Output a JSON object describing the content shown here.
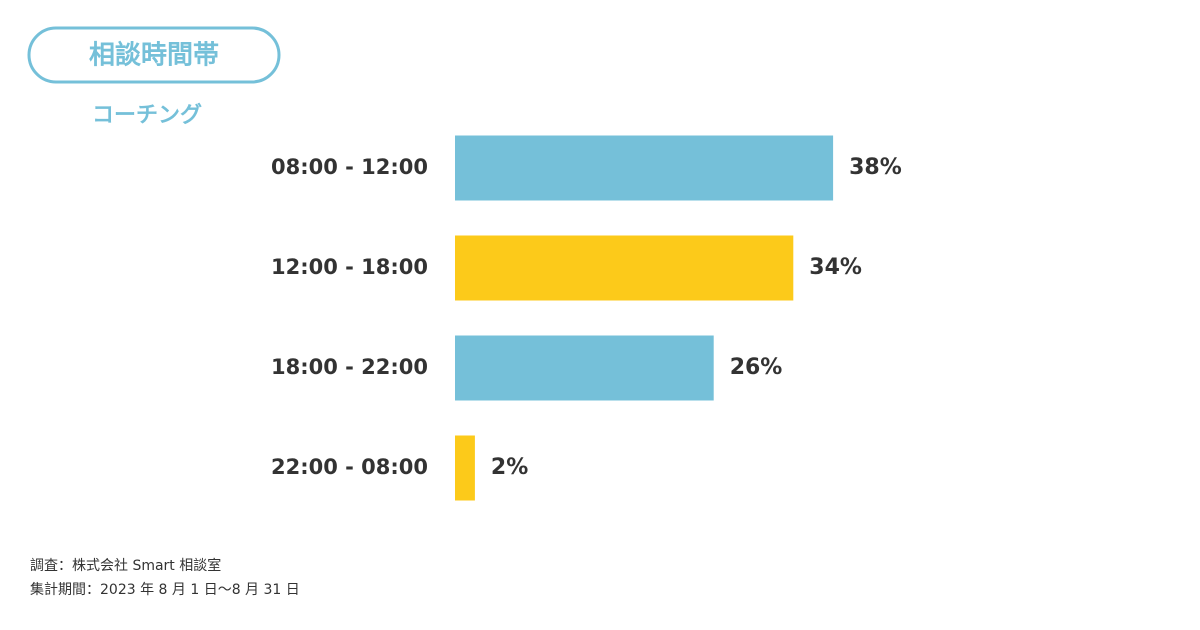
{
  "chart_data": {
    "type": "bar",
    "orientation": "horizontal",
    "title": "相談時間帯",
    "subtitle": "コーチング",
    "categories": [
      "08:00 - 12:00",
      "12:00 - 18:00",
      "18:00 - 22:00",
      "22:00 - 08:00"
    ],
    "values": [
      38,
      34,
      26,
      2
    ],
    "value_labels": [
      "38%",
      "34%",
      "26%",
      "2%"
    ],
    "colors": [
      "#75c0d9",
      "#fcca1a",
      "#75c0d9",
      "#fcca1a"
    ],
    "notes": [
      "調査：株式会社 Smart 相談室",
      "集計期間：2023 年 8 月 1 日〜8 月 31 日"
    ]
  }
}
